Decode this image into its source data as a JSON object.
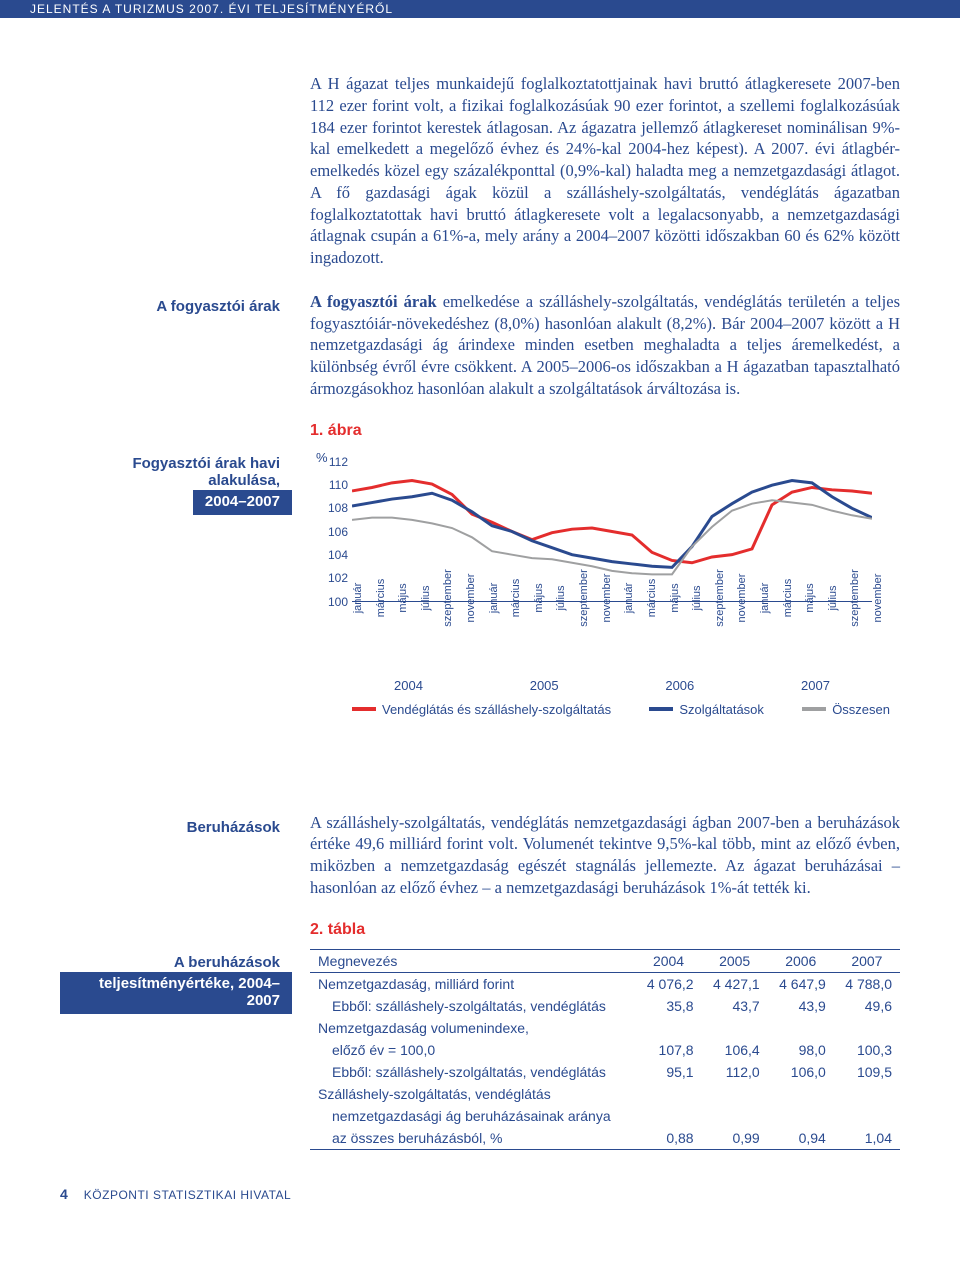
{
  "header": "JELENTÉS A TURIZMUS 2007. ÉVI TELJESÍTMÉNYÉRŐL",
  "para1": "A H ágazat teljes munkaidejű foglalkoztatottjainak havi bruttó átlagkeresete 2007-ben 112 ezer forint volt, a fizikai foglalkozásúak 90 ezer forintot, a szellemi foglalkozásúak 184 ezer forintot kerestek átlagosan. Az ágazatra jellemző átlagkereset nominálisan 9%-kal emelkedett a megelőző évhez és 24%-kal 2004-hez képest). A 2007. évi átlagbér-emelkedés közel egy százalékponttal (0,9%-kal) haladta meg a nemzetgazdasági átlagot. A fő gazdasági ágak közül a szálláshely-szolgáltatás, vendéglátás ágazatban foglalkoztatottak havi bruttó átlagkeresete volt a legalacsonyabb, a nemzetgazdasági átlagnak csupán a 61%-a, mely arány a 2004–2007 közötti időszakban 60 és 62% között ingadozott.",
  "side_prices": "A fogyasztói árak",
  "para2_bold": "A fogyasztói árak",
  "para2_rest": " emelkedése a szálláshely-szolgáltatás, vendéglátás területén a teljes fogyasztóiár-növekedéshez (8,0%) hasonlóan alakult (8,2%). Bár 2004–2007 között a H nemzetgazdasági ág árindexe minden esetben meghaladta a teljes áremelkedést, a különbség évről évre csökkent. A 2005–2006-os időszakban a H ágazatban tapasztalható ármozgásokhoz hasonlóan alakult a szolgáltatások árváltozása is.",
  "fig_label": "1. ábra",
  "side_chart_l1": "Fogyasztói árak havi alakulása,",
  "side_chart_l2": "2004–2007",
  "chart": {
    "y_unit": "%",
    "ylim": [
      100,
      112
    ],
    "ytick_step": 2,
    "yticks": [
      100,
      102,
      104,
      106,
      108,
      110,
      112
    ],
    "months": [
      "január",
      "március",
      "május",
      "július",
      "szeptember",
      "november"
    ],
    "years": [
      "2004",
      "2005",
      "2006",
      "2007"
    ],
    "series": [
      {
        "name": "Vendéglátás és szálláshely-szolgáltatás",
        "color": "#e42d2d",
        "width": 3,
        "values": [
          109.5,
          109.8,
          110.2,
          110.4,
          110.1,
          109.2,
          107.5,
          106.8,
          106.0,
          105.3,
          105.9,
          106.2,
          106.3,
          106.0,
          105.7,
          104.2,
          103.5,
          103.3,
          103.8,
          104.0,
          104.5,
          108.3,
          109.4,
          109.8,
          109.6,
          109.5,
          109.3
        ]
      },
      {
        "name": "Szolgáltatások",
        "color": "#2a4a8f",
        "width": 3,
        "values": [
          108.2,
          108.5,
          108.8,
          109.0,
          109.3,
          108.7,
          107.7,
          106.5,
          106.0,
          105.2,
          104.6,
          104.0,
          103.7,
          103.4,
          103.2,
          103.0,
          102.9,
          104.7,
          107.3,
          108.4,
          109.4,
          110.0,
          110.4,
          110.2,
          109.0,
          108.0,
          107.2
        ]
      },
      {
        "name": "Összesen",
        "color": "#9fa0a1",
        "width": 2,
        "values": [
          107.0,
          107.2,
          107.2,
          107.0,
          106.7,
          106.3,
          105.5,
          104.3,
          104.0,
          103.7,
          103.6,
          103.3,
          103.0,
          102.6,
          102.4,
          102.3,
          102.3,
          104.7,
          106.4,
          107.8,
          108.4,
          108.7,
          108.5,
          108.3,
          107.8,
          107.4,
          107.1
        ]
      }
    ]
  },
  "side_invest": "Beruházások",
  "para3": "A szálláshely-szolgáltatás, vendéglátás nemzetgazdasági ágban 2007-ben a beruházások értéke 49,6 milliárd forint volt. Volumenét tekintve 9,5%-kal több, mint az előző évben, miközben a nemzetgazdaság egészét stagnálás jellemezte. Az ágazat beruházásai – hasonlóan az előző évhez – a nemzetgazdasági beruházások 1%-át tették ki.",
  "tbl_label": "2. tábla",
  "side_tbl_l1": "A beruházások",
  "side_tbl_l2": "teljesítményértéke, 2004–2007",
  "table": {
    "head": [
      "Megnevezés",
      "2004",
      "2005",
      "2006",
      "2007"
    ],
    "rows": [
      {
        "name": "Nemzetgazdaság, milliárd forint",
        "indent": 0,
        "v": [
          "4 076,2",
          "4 427,1",
          "4 647,9",
          "4 788,0"
        ]
      },
      {
        "name": "Ebből: szálláshely-szolgáltatás, vendéglátás",
        "indent": 1,
        "v": [
          "35,8",
          "43,7",
          "43,9",
          "49,6"
        ]
      },
      {
        "name": "Nemzetgazdaság volumenindexe,",
        "indent": 0,
        "v": [
          "",
          "",
          "",
          ""
        ]
      },
      {
        "name": "előző év = 100,0",
        "indent": 1,
        "v": [
          "107,8",
          "106,4",
          "98,0",
          "100,3"
        ]
      },
      {
        "name": "Ebből: szálláshely-szolgáltatás, vendéglátás",
        "indent": 1,
        "v": [
          "95,1",
          "112,0",
          "106,0",
          "109,5"
        ]
      },
      {
        "name": "Szálláshely-szolgáltatás, vendéglátás",
        "indent": 0,
        "v": [
          "",
          "",
          "",
          ""
        ]
      },
      {
        "name": "nemzetgazdasági ág beruházásainak aránya",
        "indent": 1,
        "v": [
          "",
          "",
          "",
          ""
        ]
      },
      {
        "name": "az összes beruházásból, %",
        "indent": 1,
        "v": [
          "0,88",
          "0,99",
          "0,94",
          "1,04"
        ],
        "last": true
      }
    ]
  },
  "footer_num": "4",
  "footer_org": "KÖZPONTI STATISZTIKAI HIVATAL"
}
